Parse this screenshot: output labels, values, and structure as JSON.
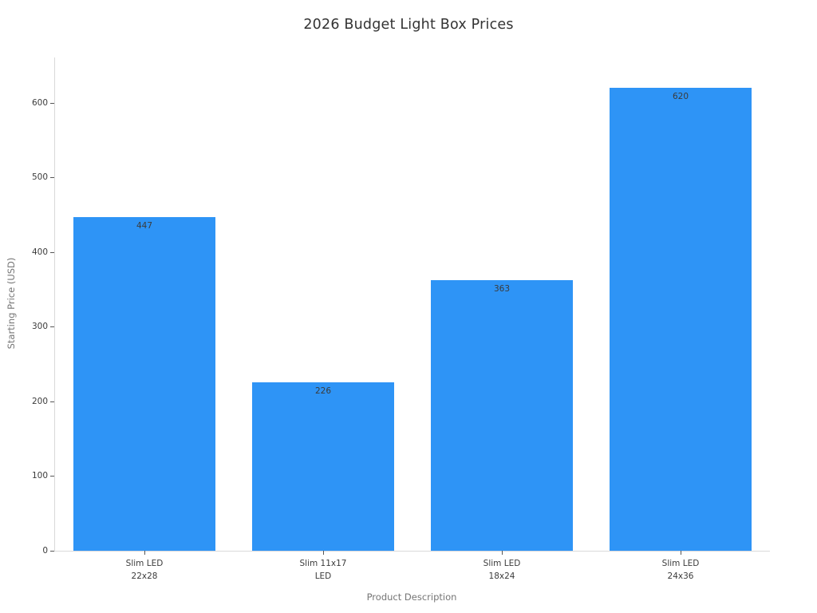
{
  "chart_data": {
    "type": "bar",
    "title": "2026 Budget Light Box Prices",
    "xlabel": "Product Description",
    "ylabel": "Starting Price (USD)",
    "categories": [
      "Slim LED\n22x28",
      "Slim 11x17\nLED",
      "Slim LED\n18x24",
      "Slim LED\n24x36"
    ],
    "values": [
      447,
      226,
      363,
      620
    ],
    "value_labels": [
      "447",
      "226",
      "363",
      "620"
    ],
    "yticks": [
      0,
      100,
      200,
      300,
      400,
      500,
      600
    ],
    "ylim": [
      0,
      661
    ],
    "grid": false,
    "legend": "none",
    "colors": {
      "bar": "#2e94f6",
      "value_label": "#3b3b3b",
      "tick_label": "#3b3b3b",
      "axis_title": "#757575",
      "spine": "#d9d9d9",
      "title": "#333333",
      "background": "#ffffff"
    }
  }
}
